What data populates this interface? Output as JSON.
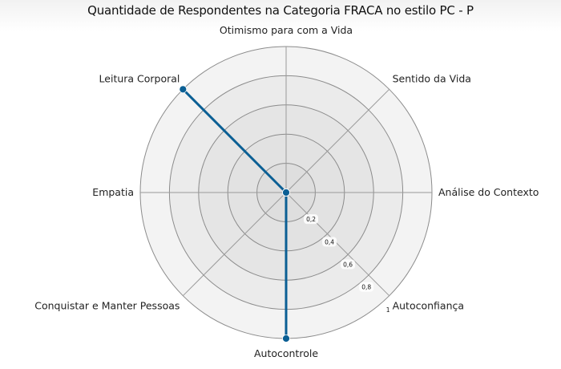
{
  "chart_data": {
    "type": "radar",
    "title": "Quantidade de Respondentes na Categoria FRACA no estilo PC - P",
    "categories": [
      "Otimismo para com a Vida",
      "Sentido da Vida",
      "Análise do Contexto",
      "Autoconfiança",
      "Autocontrole",
      "Conquistar e Manter Pessoas",
      "Empatia",
      "Leitura Corporal"
    ],
    "series": [
      {
        "values": [
          0,
          0,
          0,
          0,
          1,
          0,
          0,
          1
        ],
        "color": "#0b5f94"
      }
    ],
    "r_ticks": [
      "0,2",
      "0,4",
      "0,6",
      "0,8",
      "1"
    ],
    "r_range": [
      0,
      1
    ],
    "grid": true,
    "legend": "none"
  }
}
